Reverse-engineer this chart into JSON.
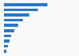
{
  "values": [
    1200,
    950,
    710,
    530,
    390,
    280,
    200,
    160,
    115,
    60
  ],
  "bar_color": "#2878c8",
  "background_color": "#f9f9f9",
  "bar_height": 0.55,
  "xlim": [
    0,
    1600
  ],
  "n_bars": 10,
  "figsize": [
    1.0,
    0.71
  ],
  "dpi": 100
}
